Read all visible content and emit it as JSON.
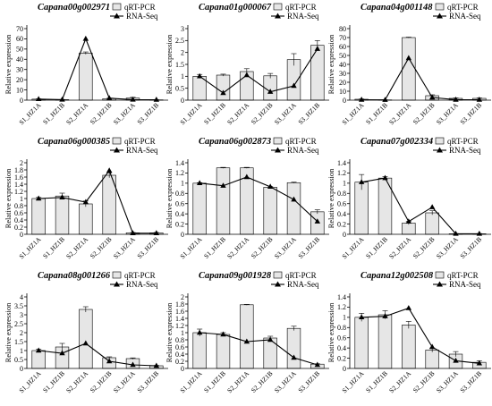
{
  "figure": {
    "legend": {
      "bar_label": "qRT-PCR",
      "line_label": "RNA-Seq"
    },
    "ylabel": "Relative expression",
    "categories": [
      "S1_HZ1A",
      "S1_HZ1B",
      "S2_HZ1A",
      "S2_HZ1B",
      "S3_HZ1A",
      "S3_HZ1B"
    ]
  },
  "colors": {
    "bar_fill": "#e6e6e6",
    "line": "#000000"
  },
  "chart_data": [
    {
      "type": "bar",
      "title": "Capana00g002971",
      "categories": [
        "S1_HZ1A",
        "S1_HZ1B",
        "S2_HZ1A",
        "S2_HZ1B",
        "S3_HZ1A",
        "S3_HZ1B"
      ],
      "ylabel": "Relative expression",
      "ylim": [
        0,
        70
      ],
      "yticks": [
        0,
        10,
        20,
        30,
        40,
        50,
        60,
        70
      ],
      "ytick_labels": [
        "0",
        "10",
        "20",
        "30",
        "40",
        "50",
        "60",
        "70"
      ],
      "series": [
        {
          "name": "qRT-PCR",
          "values": [
            1,
            0.5,
            46,
            1.5,
            2,
            0.3
          ],
          "errors": [
            0.3,
            0.2,
            1.2,
            0.3,
            0.8,
            0.1
          ]
        },
        {
          "name": "RNA-Seq",
          "values": [
            1,
            0.5,
            60,
            2,
            0.5,
            0.4
          ]
        }
      ]
    },
    {
      "type": "bar",
      "title": "Capana01g000067",
      "categories": [
        "S1_HZ1A",
        "S1_HZ1B",
        "S2_HZ1A",
        "S2_HZ1B",
        "S3_HZ1A",
        "S3_HZ1B"
      ],
      "ylabel": "Relative expression",
      "ylim": [
        0,
        3
      ],
      "yticks": [
        0,
        0.5,
        1,
        1.5,
        2,
        2.5,
        3
      ],
      "ytick_labels": [
        "0",
        "0.5",
        "1",
        "1.5",
        "2",
        "2.5",
        "3"
      ],
      "series": [
        {
          "name": "qRT-PCR",
          "values": [
            1,
            1.05,
            1.2,
            1.02,
            1.7,
            2.3
          ],
          "errors": [
            0.08,
            0.04,
            0.12,
            0.1,
            0.25,
            0.2
          ]
        },
        {
          "name": "RNA-Seq",
          "values": [
            1,
            0.3,
            1.05,
            0.35,
            0.6,
            2.15
          ]
        }
      ]
    },
    {
      "type": "bar",
      "title": "Capana04g001148",
      "categories": [
        "S1_HZ1A",
        "S1_HZ1B",
        "S2_HZ1A",
        "S2_HZ1B",
        "S3_HZ1A",
        "S3_HZ1B"
      ],
      "ylabel": "Relative expression",
      "ylim": [
        0,
        80
      ],
      "yticks": [
        0,
        10,
        20,
        30,
        40,
        50,
        60,
        70,
        80
      ],
      "ytick_labels": [
        "0",
        "10",
        "20",
        "30",
        "40",
        "50",
        "60",
        "70",
        "80"
      ],
      "series": [
        {
          "name": "qRT-PCR",
          "values": [
            1,
            0.3,
            70,
            5,
            2,
            2
          ],
          "errors": [
            0.3,
            0.1,
            0.5,
            1,
            0.5,
            0.5
          ]
        },
        {
          "name": "RNA-Seq",
          "values": [
            0.5,
            0.3,
            47,
            3,
            0.5,
            0.5
          ]
        }
      ]
    },
    {
      "type": "bar",
      "title": "Capana06g000385",
      "categories": [
        "S1_HZ1A",
        "S1_HZ1B",
        "S2_HZ1A",
        "S2_HZ1B",
        "S3_HZ1A",
        "S3_HZ1B"
      ],
      "ylabel": "Relative expression",
      "ylim": [
        0,
        2
      ],
      "yticks": [
        0,
        0.2,
        0.4,
        0.6,
        0.8,
        1,
        1.2,
        1.4,
        1.6,
        1.8,
        2
      ],
      "ytick_labels": [
        "0",
        "0.2",
        "0.4",
        "0.6",
        "0.8",
        "1",
        "1.2",
        "1.4",
        "1.6",
        "1.8",
        "2"
      ],
      "series": [
        {
          "name": "qRT-PCR",
          "values": [
            1,
            1.07,
            0.85,
            1.65,
            0.04,
            0.04
          ],
          "errors": [
            0.03,
            0.08,
            0.08,
            0.07,
            0.01,
            0.01
          ]
        },
        {
          "name": "RNA-Seq",
          "values": [
            1,
            1.03,
            0.9,
            1.78,
            0.03,
            0.03
          ]
        }
      ]
    },
    {
      "type": "bar",
      "title": "Capana06g002873",
      "categories": [
        "S1_HZ1A",
        "S1_HZ1B",
        "S2_HZ1A",
        "S2_HZ1B",
        "S3_HZ1A",
        "S3_HZ1B"
      ],
      "ylabel": "Relative expression",
      "ylim": [
        0,
        1.4
      ],
      "yticks": [
        0,
        0.2,
        0.4,
        0.6,
        0.8,
        1,
        1.2,
        1.4
      ],
      "ytick_labels": [
        "0",
        "0.2",
        "0.4",
        "0.6",
        "0.8",
        "1",
        "1.2",
        "1.4"
      ],
      "series": [
        {
          "name": "qRT-PCR",
          "values": [
            1,
            1.3,
            1.3,
            0.92,
            1.01,
            0.44
          ],
          "errors": [
            0.01,
            0.01,
            0.01,
            0.02,
            0.01,
            0.04
          ]
        },
        {
          "name": "RNA-Seq",
          "values": [
            1,
            0.95,
            1.12,
            0.93,
            0.68,
            0.25
          ]
        }
      ]
    },
    {
      "type": "bar",
      "title": "Capana07g002334",
      "categories": [
        "S1_HZ1A",
        "S1_HZ1B",
        "S2_HZ1A",
        "S2_HZ1B",
        "S3_HZ1A",
        "S3_HZ1B"
      ],
      "ylabel": "Relative expression",
      "ylim": [
        0,
        1.4
      ],
      "yticks": [
        0,
        0.2,
        0.4,
        0.6,
        0.8,
        1,
        1.2,
        1.4
      ],
      "ytick_labels": [
        "0",
        "0.2",
        "0.4",
        "0.6",
        "0.8",
        "1",
        "1.2",
        "1.4"
      ],
      "series": [
        {
          "name": "qRT-PCR",
          "values": [
            1.02,
            1.1,
            0.22,
            0.42,
            0.01,
            0.01
          ],
          "errors": [
            0.15,
            0.03,
            0.03,
            0.04,
            0.005,
            0.005
          ]
        },
        {
          "name": "RNA-Seq",
          "values": [
            1.02,
            1.1,
            0.25,
            0.53,
            0.01,
            0.01
          ]
        }
      ]
    },
    {
      "type": "bar",
      "title": "Capana08g001266",
      "categories": [
        "S1_HZ1A",
        "S1_HZ1B",
        "S2_HZ1A",
        "S2_HZ1B",
        "S3_HZ1A",
        "S3_HZ1B"
      ],
      "ylabel": "Relative expression",
      "ylim": [
        0,
        4
      ],
      "yticks": [
        0,
        0.5,
        1,
        1.5,
        2,
        2.5,
        3,
        3.5,
        4
      ],
      "ytick_labels": [
        "0",
        "0.5",
        "1",
        "1.5",
        "2",
        "2.5",
        "3",
        "3.5",
        "4"
      ],
      "series": [
        {
          "name": "qRT-PCR",
          "values": [
            1,
            1.2,
            3.3,
            0.6,
            0.55,
            0.15
          ],
          "errors": [
            0.08,
            0.2,
            0.15,
            0.05,
            0.04,
            0.02
          ]
        },
        {
          "name": "RNA-Seq",
          "values": [
            1,
            0.85,
            1.4,
            0.4,
            0.2,
            0.15
          ]
        }
      ]
    },
    {
      "type": "bar",
      "title": "Capana09g001928",
      "categories": [
        "S1_HZ1A",
        "S1_HZ1B",
        "S2_HZ1A",
        "S2_HZ1B",
        "S3_HZ1A",
        "S3_HZ1B"
      ],
      "ylabel": "Relative expression",
      "ylim": [
        0,
        2
      ],
      "yticks": [
        0,
        0.2,
        0.4,
        0.6,
        0.8,
        1,
        1.2,
        1.4,
        1.6,
        1.8,
        2
      ],
      "ytick_labels": [
        "0",
        "0.2",
        "0.4",
        "0.6",
        "0.8",
        "1",
        "1.2",
        "1.4",
        "1.6",
        "1.8",
        "2"
      ],
      "series": [
        {
          "name": "qRT-PCR",
          "values": [
            1,
            0.95,
            1.78,
            0.85,
            1.12,
            0.12
          ],
          "errors": [
            0.1,
            0.05,
            0.01,
            0.05,
            0.06,
            0.01
          ]
        },
        {
          "name": "RNA-Seq",
          "values": [
            1,
            0.95,
            0.75,
            0.8,
            0.3,
            0.1
          ]
        }
      ]
    },
    {
      "type": "bar",
      "title": "Capana12g002508",
      "categories": [
        "S1_HZ1A",
        "S1_HZ1B",
        "S2_HZ1A",
        "S2_HZ1B",
        "S3_HZ1A",
        "S3_HZ1B"
      ],
      "ylabel": "Relative expression",
      "ylim": [
        0,
        1.4
      ],
      "yticks": [
        0,
        0.2,
        0.4,
        0.6,
        0.8,
        1,
        1.2,
        1.4
      ],
      "ytick_labels": [
        "0",
        "0.2",
        "0.4",
        "0.6",
        "0.8",
        "1",
        "1.2",
        "1.4"
      ],
      "series": [
        {
          "name": "qRT-PCR",
          "values": [
            1,
            1.05,
            0.85,
            0.36,
            0.28,
            0.12
          ],
          "errors": [
            0.08,
            0.08,
            0.07,
            0.04,
            0.05,
            0.03
          ]
        },
        {
          "name": "RNA-Seq",
          "values": [
            1,
            1.02,
            1.18,
            0.42,
            0.15,
            0.1
          ]
        }
      ]
    }
  ]
}
